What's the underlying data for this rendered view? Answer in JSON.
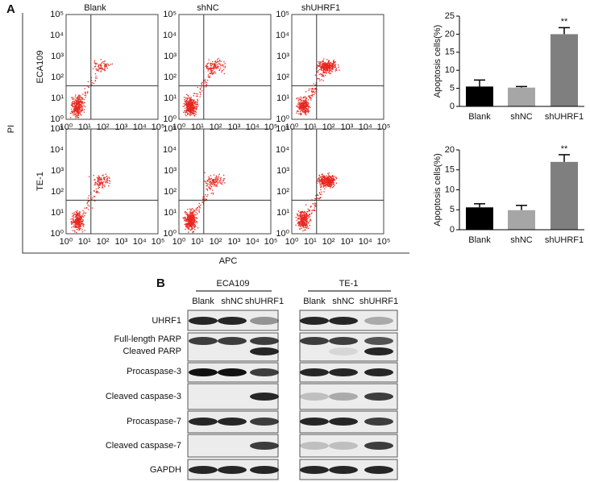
{
  "panel_a": {
    "label": "A",
    "columns": [
      "Blank",
      "shNC",
      "shUHRF1"
    ],
    "rows": [
      "ECA109",
      "TE-1"
    ],
    "y_axis_label": "PI",
    "x_axis_label": "APC",
    "ticks": [
      "10⁰",
      "10¹",
      "10²",
      "10³",
      "10⁴",
      "10⁵"
    ]
  },
  "chart_data": [
    {
      "type": "bar",
      "y_label": "Apoptosis cells(%)",
      "categories": [
        "Blank",
        "shNC",
        "shUHRF1"
      ],
      "values": [
        5.5,
        5.2,
        20
      ],
      "errors": [
        1.8,
        0.3,
        1.8
      ],
      "colors": [
        "#000000",
        "#a6a6a6",
        "#7f7f7f"
      ],
      "ylim": [
        0,
        25
      ],
      "yticks": [
        0,
        5,
        10,
        15,
        20,
        25
      ],
      "annotations": [
        {
          "text": "**",
          "at": "shUHRF1"
        }
      ]
    },
    {
      "type": "bar",
      "y_label": "Apoptosis cells(%)",
      "categories": [
        "Blank",
        "shNC",
        "shUHRF1"
      ],
      "values": [
        5.6,
        4.9,
        17
      ],
      "errors": [
        0.9,
        1.2,
        1.8
      ],
      "colors": [
        "#000000",
        "#a6a6a6",
        "#7f7f7f"
      ],
      "ylim": [
        0,
        20
      ],
      "yticks": [
        0,
        5,
        10,
        15,
        20
      ],
      "annotations": [
        {
          "text": "**",
          "at": "shUHRF1"
        }
      ]
    }
  ],
  "panel_b": {
    "label": "B",
    "groups": [
      {
        "name": "ECA109",
        "lanes": [
          "Blank",
          "shNC",
          "shUHRF1"
        ]
      },
      {
        "name": "TE-1",
        "lanes": [
          "Blank",
          "shNC",
          "shUHRF1"
        ]
      }
    ],
    "proteins": [
      "UHRF1",
      "Full-length PARP",
      "Cleaved PARP",
      "Procaspase-3",
      "Cleaved caspase-3",
      "Procaspase-7",
      "Cleaved caspase-7",
      "GAPDH"
    ]
  }
}
